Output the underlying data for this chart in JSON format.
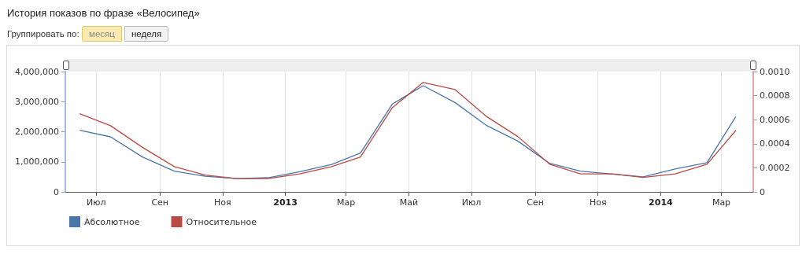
{
  "chart_data": {
    "type": "line",
    "title": "История показов по фразе «Велосипед»",
    "annotations": [
      "Группировать по:",
      "месяц",
      "неделя"
    ],
    "x": [
      "2012-06-15",
      "2012-07-15",
      "2012-08-15",
      "2012-09-15",
      "2012-10-15",
      "2012-11-15",
      "2012-12-15",
      "2013-01-15",
      "2013-02-15",
      "2013-03-15",
      "2013-04-15",
      "2013-05-15",
      "2013-06-15",
      "2013-07-15",
      "2013-08-15",
      "2013-09-15",
      "2013-10-15",
      "2013-11-15",
      "2013-12-15",
      "2014-01-15",
      "2014-02-15",
      "2014-03-15"
    ],
    "series": [
      {
        "name": "Абсолютное",
        "color": "#4a76a9",
        "values": [
          2050000,
          1830000,
          1160000,
          690000,
          520000,
          440000,
          470000,
          670000,
          910000,
          1290000,
          2920000,
          3530000,
          2970000,
          2220000,
          1690000,
          950000,
          690000,
          590000,
          500000,
          760000,
          970000,
          2500000
        ]
      },
      {
        "name": "Относительное",
        "color": "#b94a46",
        "axis": "y2",
        "values": [
          0.00065,
          0.00055,
          0.00037,
          0.00021,
          0.00014,
          0.00011,
          0.00011,
          0.00015,
          0.00021,
          0.00029,
          0.0007,
          0.00091,
          0.00085,
          0.00063,
          0.00046,
          0.00023,
          0.00015,
          0.00015,
          0.00012,
          0.00015,
          0.00023,
          0.00051
        ]
      }
    ],
    "xlim": [
      "2012-06-01",
      "2014-04-01"
    ],
    "xticks": [
      {
        "value": "2012-07-01",
        "label": "Июл"
      },
      {
        "value": "2012-09-01",
        "label": "Сен"
      },
      {
        "value": "2012-11-01",
        "label": "Ноя"
      },
      {
        "value": "2013-01-01",
        "label": "2013"
      },
      {
        "value": "2013-03-01",
        "label": "Мар"
      },
      {
        "value": "2013-05-01",
        "label": "Май"
      },
      {
        "value": "2013-07-01",
        "label": "Июл"
      },
      {
        "value": "2013-09-01",
        "label": "Сен"
      },
      {
        "value": "2013-11-01",
        "label": "Ноя"
      },
      {
        "value": "2014-01-01",
        "label": "2014"
      },
      {
        "value": "2014-03-01",
        "label": "Мар"
      }
    ],
    "ylim": [
      0,
      4000000
    ],
    "yticks": [
      {
        "value": 0,
        "label": "0"
      },
      {
        "value": 1000000,
        "label": "1,000,000"
      },
      {
        "value": 2000000,
        "label": "2,000,000"
      },
      {
        "value": 3000000,
        "label": "3,000,000"
      },
      {
        "value": 4000000,
        "label": "4,000,000"
      }
    ],
    "y2lim": [
      0,
      0.001
    ],
    "y2ticks": [
      {
        "value": 0,
        "label": "0"
      },
      {
        "value": 0.0002,
        "label": "0.0002"
      },
      {
        "value": 0.0004,
        "label": "0.0004"
      },
      {
        "value": 0.0006,
        "label": "0.0006"
      },
      {
        "value": 0.0008,
        "label": "0.0008"
      },
      {
        "value": 0.001,
        "label": "0.0010"
      }
    ],
    "grid": "x",
    "legend": "bottom left",
    "marker": "none",
    "line_style": "solid"
  }
}
